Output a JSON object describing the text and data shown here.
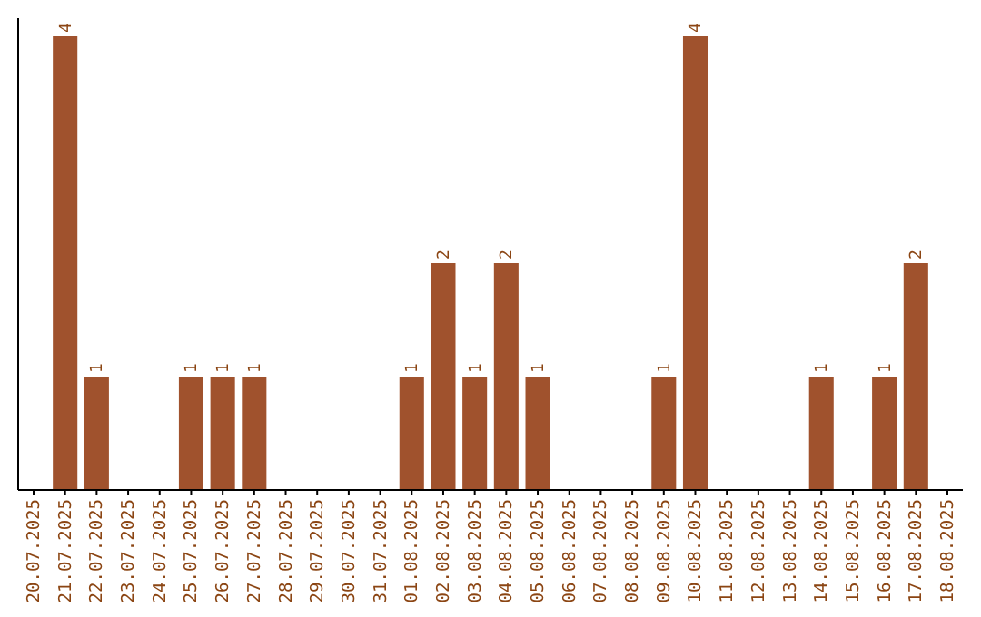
{
  "chart_data": {
    "type": "bar",
    "categories": [
      "20.07.2025",
      "21.07.2025",
      "22.07.2025",
      "23.07.2025",
      "24.07.2025",
      "25.07.2025",
      "26.07.2025",
      "27.07.2025",
      "28.07.2025",
      "29.07.2025",
      "30.07.2025",
      "31.07.2025",
      "01.08.2025",
      "02.08.2025",
      "03.08.2025",
      "04.08.2025",
      "05.08.2025",
      "06.08.2025",
      "07.08.2025",
      "08.08.2025",
      "09.08.2025",
      "10.08.2025",
      "11.08.2025",
      "12.08.2025",
      "13.08.2025",
      "14.08.2025",
      "15.08.2025",
      "16.08.2025",
      "17.08.2025",
      "18.08.2025"
    ],
    "values": [
      0,
      4,
      1,
      0,
      0,
      1,
      1,
      1,
      0,
      0,
      0,
      0,
      1,
      2,
      1,
      2,
      1,
      0,
      0,
      0,
      1,
      4,
      0,
      0,
      0,
      1,
      0,
      1,
      2,
      0
    ],
    "value_labels": [
      null,
      "4",
      "1",
      null,
      null,
      "1",
      "1",
      "1",
      null,
      null,
      null,
      null,
      "1",
      "2",
      "1",
      "2",
      "1",
      null,
      null,
      null,
      "1",
      "4",
      null,
      null,
      null,
      "1",
      null,
      "1",
      "2",
      null
    ],
    "color": "#a0522d"
  }
}
